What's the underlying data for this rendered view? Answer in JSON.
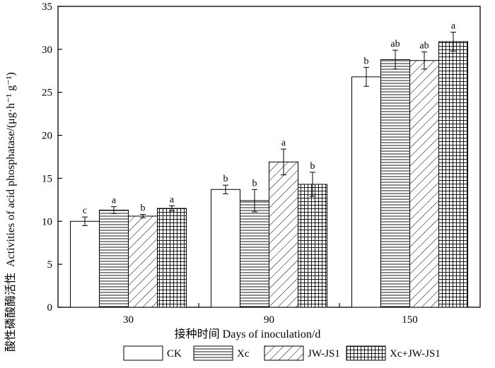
{
  "chart_data": {
    "type": "bar",
    "title": "",
    "xlabel": "接种时间 Days of inoculation/d",
    "ylabel": "Activities of acid phosphatase/(μg·h⁻¹ g⁻¹)",
    "ylabel_cn": "酸性磷酸酶活性",
    "ylim": [
      0,
      35
    ],
    "yticks": [
      0,
      5,
      10,
      15,
      20,
      25,
      30,
      35
    ],
    "categories": [
      "30",
      "90",
      "150"
    ],
    "legend_position": "bottom",
    "series": [
      {
        "name": "CK",
        "pattern": "none",
        "values": [
          10.0,
          13.7,
          26.8
        ],
        "errors": [
          0.5,
          0.5,
          1.1
        ],
        "letters": [
          "c",
          "b",
          "b"
        ]
      },
      {
        "name": "Xc",
        "pattern": "horizontal",
        "values": [
          11.3,
          12.4,
          28.8
        ],
        "errors": [
          0.4,
          1.3,
          1.1
        ],
        "letters": [
          "a",
          "b",
          "ab"
        ]
      },
      {
        "name": "JW-JS1",
        "pattern": "diagonal",
        "values": [
          10.6,
          16.9,
          28.7
        ],
        "errors": [
          0.2,
          1.5,
          1.0
        ],
        "letters": [
          "b",
          "a",
          "ab"
        ]
      },
      {
        "name": "Xc+JW-JS1",
        "pattern": "grid",
        "values": [
          11.5,
          14.3,
          30.9
        ],
        "errors": [
          0.3,
          1.4,
          1.1
        ],
        "letters": [
          "a",
          "b",
          "a"
        ]
      }
    ]
  }
}
